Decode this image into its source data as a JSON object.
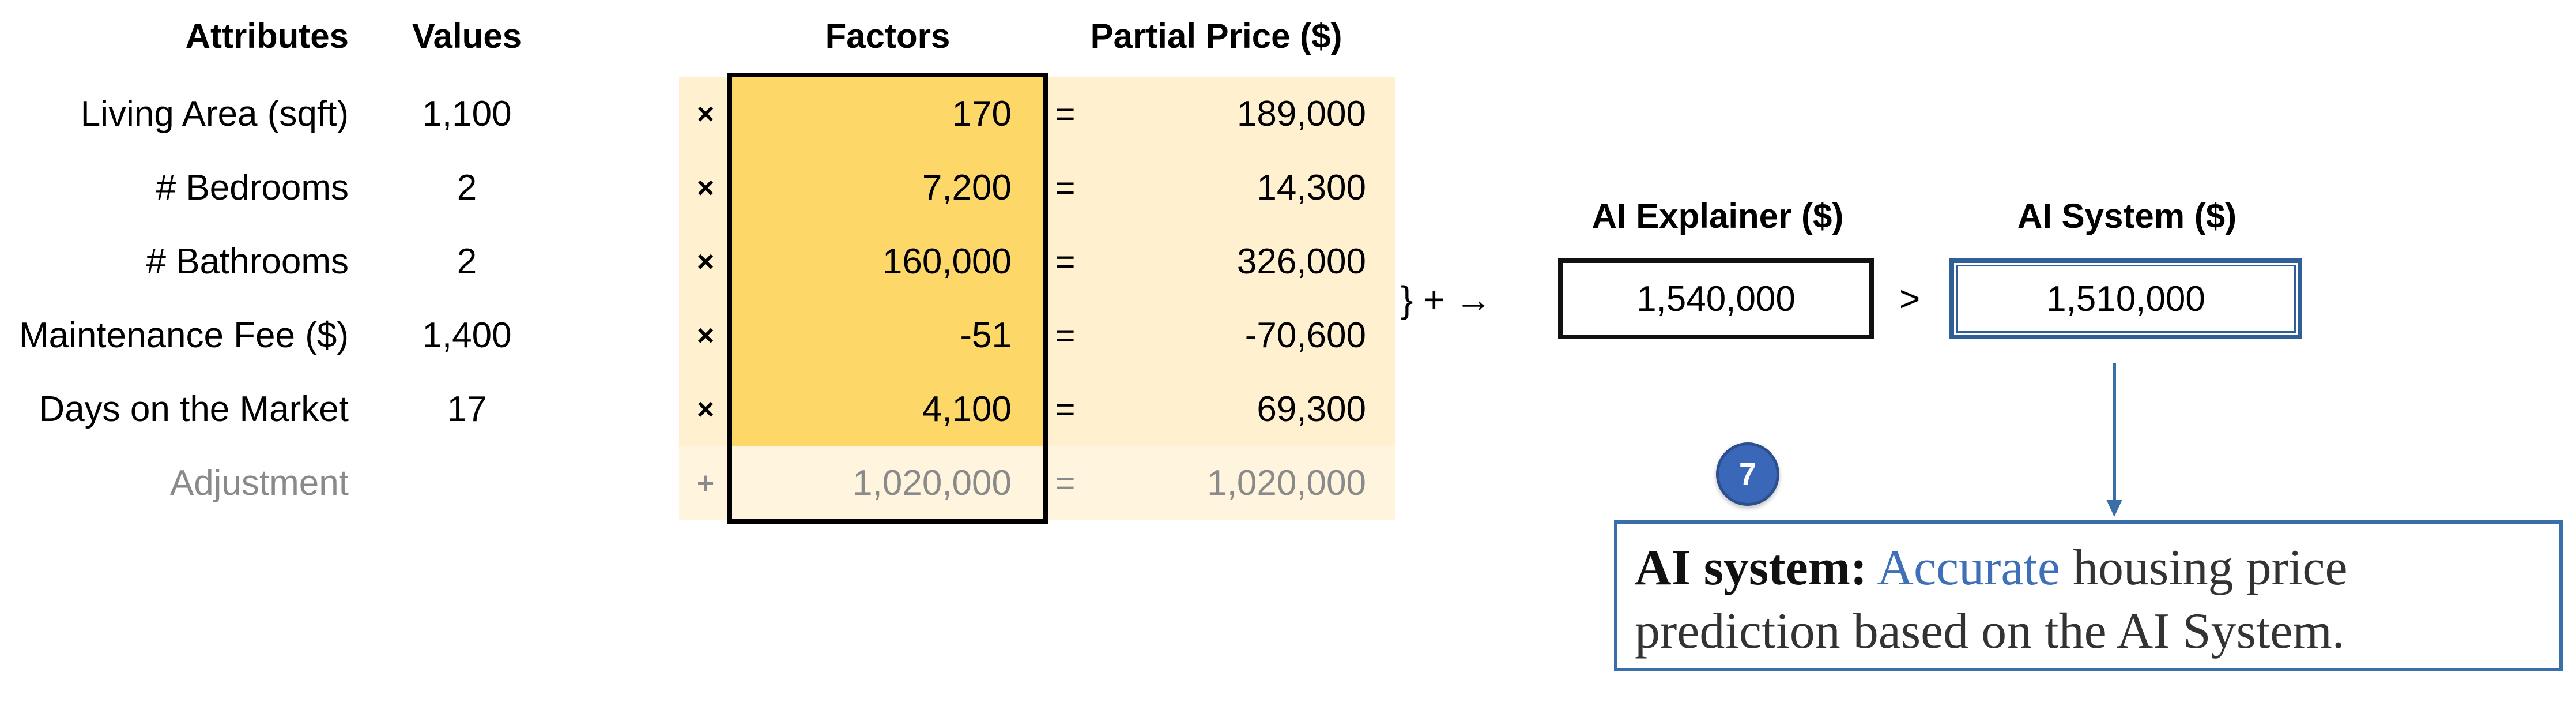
{
  "headers": {
    "attributes": "Attributes",
    "values": "Values",
    "factors": "Factors",
    "partial_price": "Partial Price ($)",
    "ai_explainer": "AI Explainer ($)",
    "ai_system": "AI System ($)"
  },
  "rows": [
    {
      "attribute": "Living Area (sqft)",
      "value": "1,100",
      "op": "×",
      "factor": "170",
      "eq": "=",
      "partial": "189,000"
    },
    {
      "attribute": "# Bedrooms",
      "value": "2",
      "op": "×",
      "factor": "7,200",
      "eq": "=",
      "partial": "14,300"
    },
    {
      "attribute": "# Bathrooms",
      "value": "2",
      "op": "×",
      "factor": "160,000",
      "eq": "=",
      "partial": "326,000"
    },
    {
      "attribute": "Maintenance Fee ($)",
      "value": "1,400",
      "op": "×",
      "factor": "-51",
      "eq": "=",
      "partial": "-70,600"
    },
    {
      "attribute": "Days on the Market",
      "value": "17",
      "op": "×",
      "factor": "4,100",
      "eq": "=",
      "partial": "69,300"
    },
    {
      "attribute": "Adjustment",
      "value": "",
      "op": "+",
      "factor": "1,020,000",
      "eq": "=",
      "partial": "1,020,000"
    }
  ],
  "sum_symbol": "} + →",
  "explainer_value": "1,540,000",
  "comparison": ">",
  "system_value": "1,510,000",
  "badge": "7",
  "callout": {
    "bold": "AI system:",
    "highlight": "Accurate",
    "rest": " housing price prediction based on the AI System."
  }
}
